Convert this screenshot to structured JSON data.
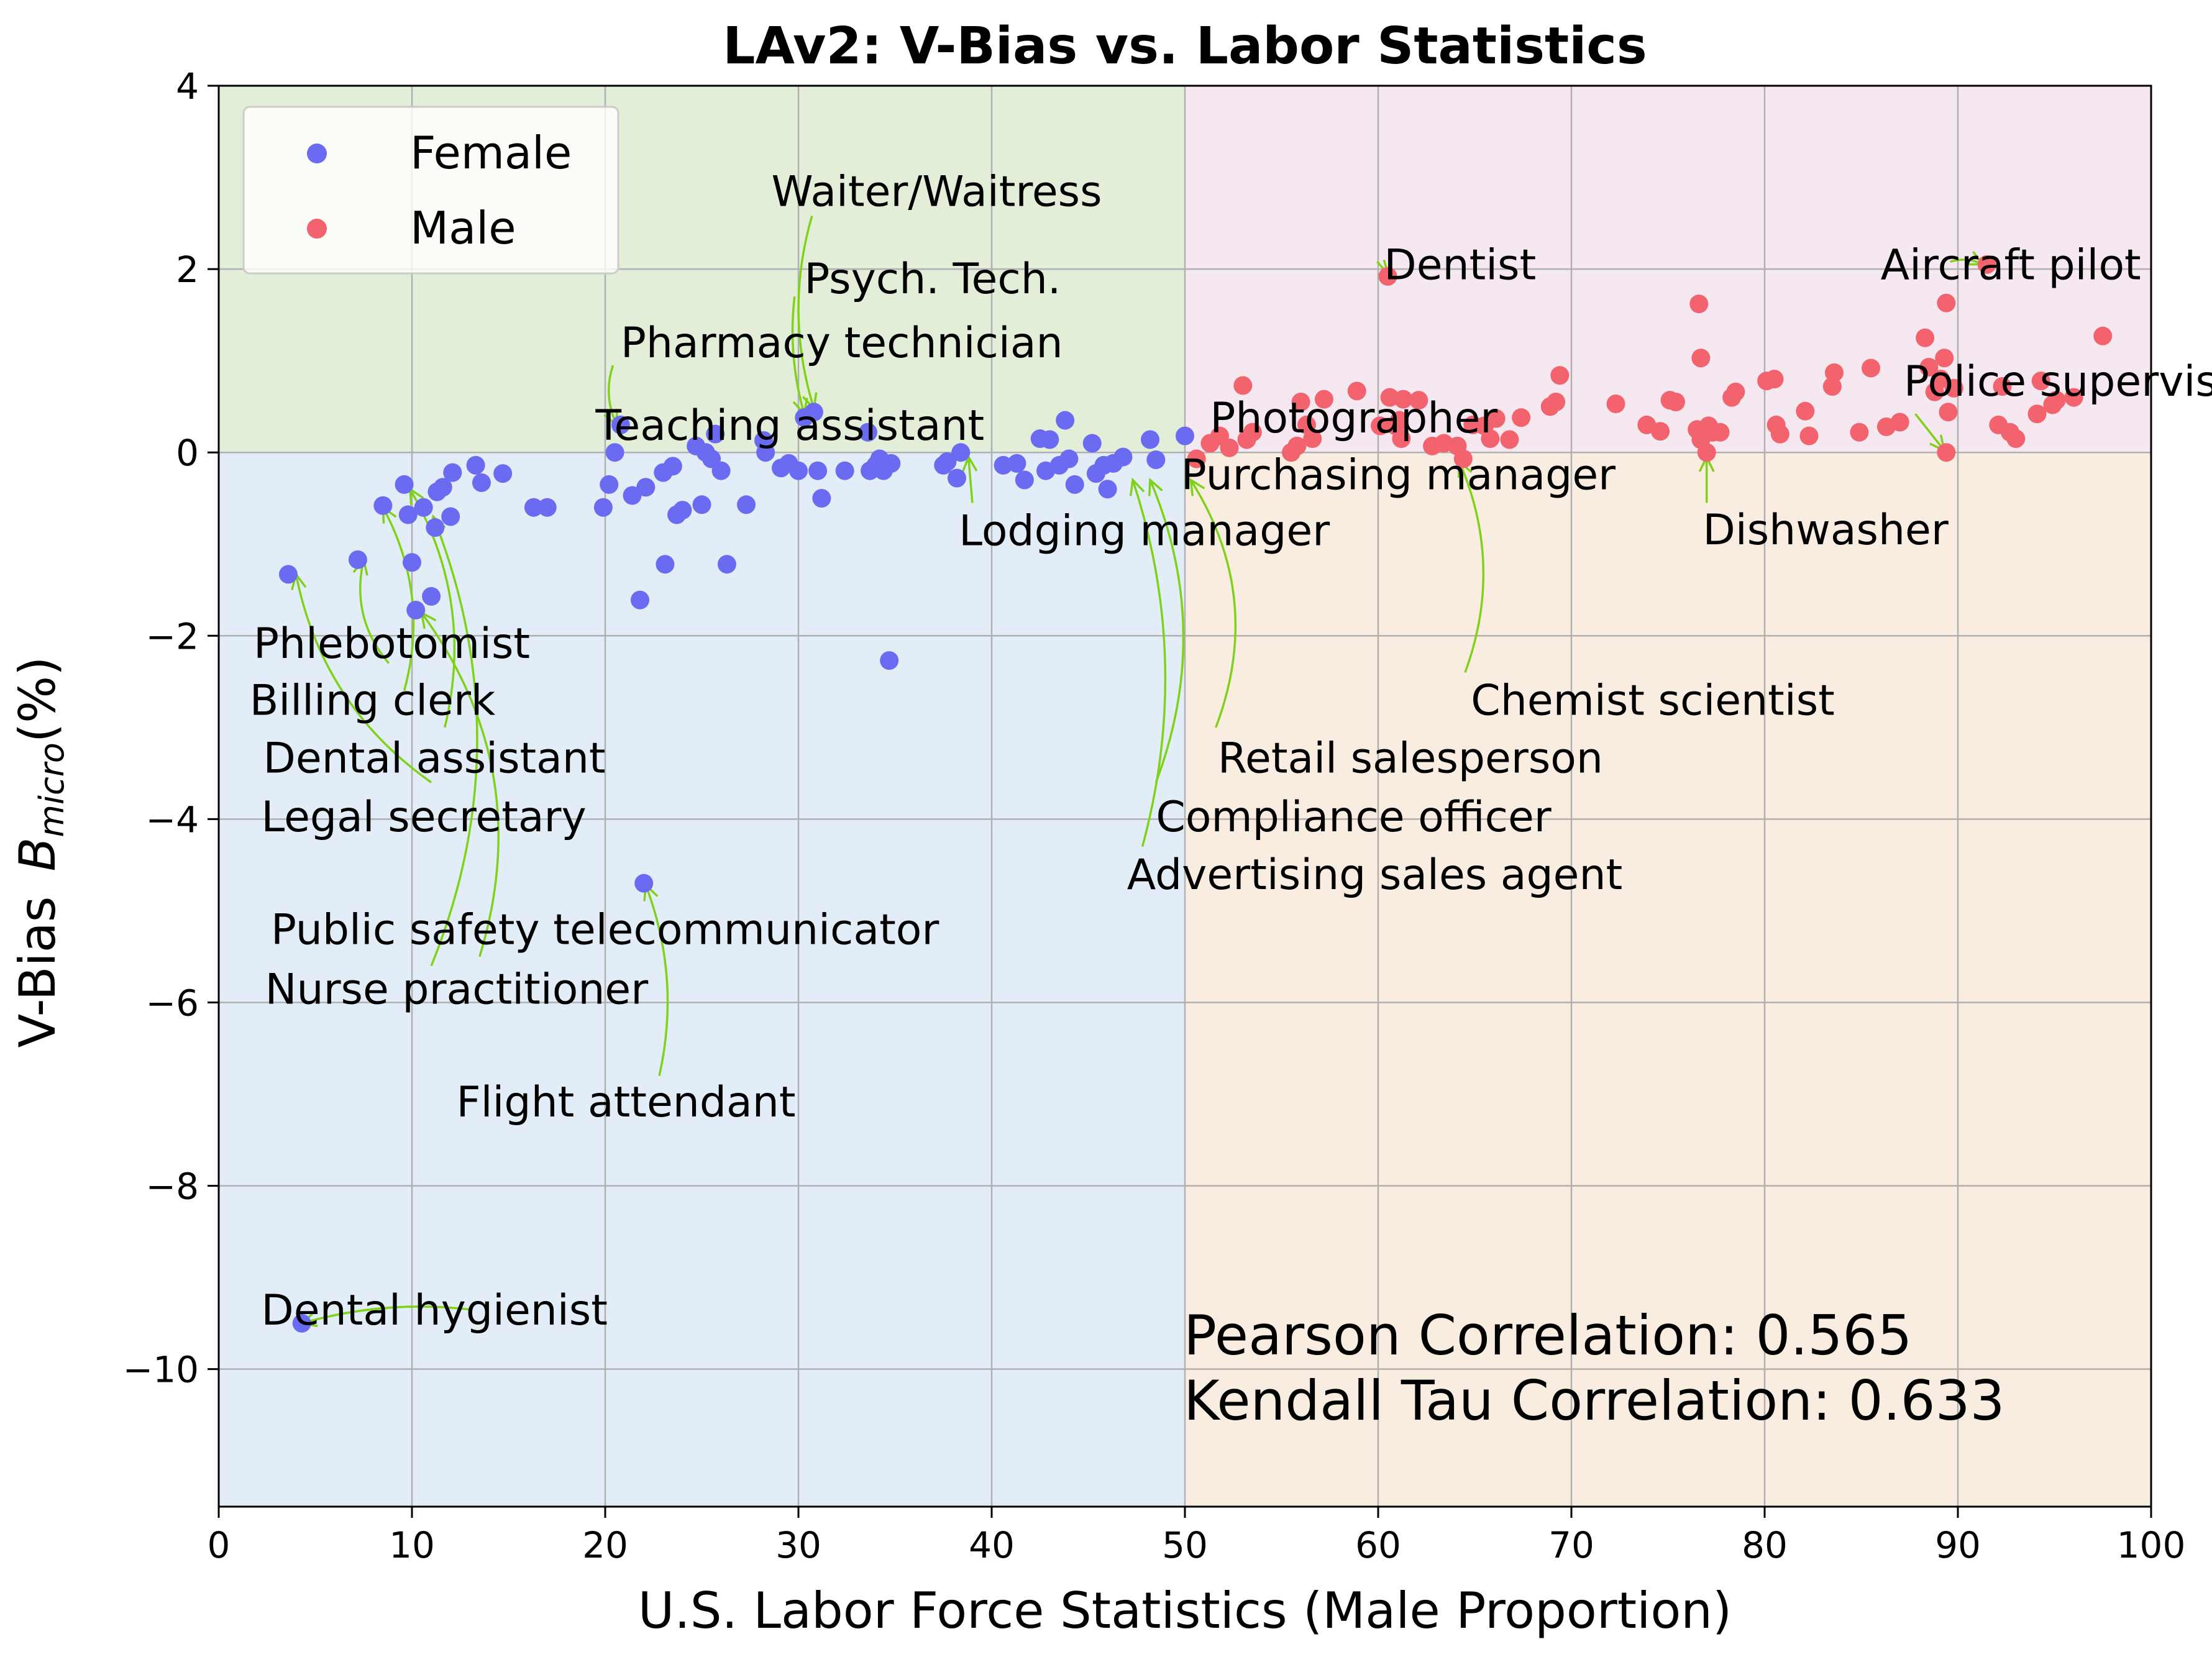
{
  "chart_data": {
    "type": "scatter",
    "title": "LAv2: V-Bias vs. Labor Statistics",
    "xlabel": "U.S. Labor Force Statistics (Male Proportion)",
    "ylabel_prefix": "V-Bias",
    "ylabel_symbol": "B",
    "ylabel_sub": "micro",
    "ylabel_suffix": "(%)",
    "xlim": [
      0,
      100
    ],
    "ylim": [
      -11.5,
      4
    ],
    "xticks": [
      0,
      10,
      20,
      30,
      40,
      50,
      60,
      70,
      80,
      90,
      100
    ],
    "yticks": [
      4,
      2,
      0,
      -2,
      -4,
      -6,
      -8,
      -10
    ],
    "xtick_labels": [
      "0",
      "10",
      "20",
      "30",
      "40",
      "50",
      "60",
      "70",
      "80",
      "90",
      "100"
    ],
    "ytick_labels": [
      "4",
      "2",
      "0",
      "−2",
      "−4",
      "−6",
      "−8",
      "−10"
    ],
    "grid": true,
    "legend_position": "top-left",
    "colors": {
      "female": "#6b6bf2",
      "male": "#f2636e",
      "region_top_left": "#e3eed9",
      "region_top_right": "#f5e8f0",
      "region_bottom_left": "#e3edf7",
      "region_bottom_right": "#f9ede1",
      "arrow": "#7fd11a"
    },
    "series": [
      {
        "name": "Female",
        "points": [
          [
            3.6,
            -1.33
          ],
          [
            4.3,
            -9.5
          ],
          [
            7.2,
            -1.17
          ],
          [
            8.5,
            -0.58
          ],
          [
            9.6,
            -0.35
          ],
          [
            9.8,
            -0.68
          ],
          [
            10,
            -1.2
          ],
          [
            10.2,
            -1.72
          ],
          [
            10.6,
            -0.6
          ],
          [
            11,
            -1.57
          ],
          [
            11.2,
            -0.82
          ],
          [
            11.3,
            -0.43
          ],
          [
            11.6,
            -0.38
          ],
          [
            12,
            -0.7
          ],
          [
            12.1,
            -0.22
          ],
          [
            13.3,
            -0.14
          ],
          [
            13.6,
            -0.33
          ],
          [
            14.7,
            -0.23
          ],
          [
            16.3,
            -0.6
          ],
          [
            17,
            -0.6
          ],
          [
            19.9,
            -0.6
          ],
          [
            20.2,
            -0.35
          ],
          [
            20.5,
            0
          ],
          [
            20.8,
            0.3
          ],
          [
            21.4,
            -0.47
          ],
          [
            21.8,
            -1.61
          ],
          [
            22,
            -4.7
          ],
          [
            22.1,
            -0.38
          ],
          [
            23,
            -0.22
          ],
          [
            23.1,
            -1.22
          ],
          [
            23.5,
            -0.15
          ],
          [
            23.7,
            -0.68
          ],
          [
            24,
            -0.63
          ],
          [
            24.7,
            0.07
          ],
          [
            25,
            -0.57
          ],
          [
            25.2,
            0
          ],
          [
            25.5,
            -0.07
          ],
          [
            25.7,
            0.2
          ],
          [
            26,
            -0.2
          ],
          [
            26.3,
            -1.22
          ],
          [
            27.3,
            -0.57
          ],
          [
            28.2,
            0.13
          ],
          [
            28.3,
            0
          ],
          [
            29.1,
            -0.17
          ],
          [
            29.5,
            -0.12
          ],
          [
            30,
            -0.2
          ],
          [
            30.3,
            0.38
          ],
          [
            30.8,
            0.44
          ],
          [
            31,
            -0.2
          ],
          [
            31.2,
            -0.5
          ],
          [
            32.4,
            -0.2
          ],
          [
            33.6,
            0.22
          ],
          [
            33.7,
            -0.2
          ],
          [
            34,
            -0.14
          ],
          [
            34.2,
            -0.07
          ],
          [
            34.4,
            -0.2
          ],
          [
            34.7,
            -2.27
          ],
          [
            34.8,
            -0.12
          ],
          [
            37.5,
            -0.14
          ],
          [
            37.7,
            -0.1
          ],
          [
            38.2,
            -0.28
          ],
          [
            38.4,
            0
          ],
          [
            40.6,
            -0.14
          ],
          [
            41.3,
            -0.12
          ],
          [
            41.7,
            -0.3
          ],
          [
            42.5,
            0.15
          ],
          [
            42.8,
            -0.2
          ],
          [
            43,
            0.14
          ],
          [
            43.5,
            -0.14
          ],
          [
            43.8,
            0.35
          ],
          [
            44,
            -0.07
          ],
          [
            44.3,
            -0.35
          ],
          [
            45.2,
            0.1
          ],
          [
            45.4,
            -0.23
          ],
          [
            45.8,
            -0.14
          ],
          [
            46,
            -0.4
          ],
          [
            46.3,
            -0.12
          ],
          [
            46.8,
            -0.05
          ],
          [
            48.2,
            0.14
          ],
          [
            48.5,
            -0.08
          ],
          [
            50,
            0.18
          ]
        ]
      },
      {
        "name": "Male",
        "points": [
          [
            50.6,
            -0.07
          ],
          [
            51.3,
            0.1
          ],
          [
            51.8,
            0.18
          ],
          [
            52.3,
            0.05
          ],
          [
            53,
            0.73
          ],
          [
            53.2,
            0.14
          ],
          [
            53.5,
            0.22
          ],
          [
            55.5,
            0
          ],
          [
            55.8,
            0.07
          ],
          [
            56,
            0.55
          ],
          [
            56.3,
            0.3
          ],
          [
            56.6,
            0.15
          ],
          [
            57.2,
            0.58
          ],
          [
            58.9,
            0.67
          ],
          [
            60.1,
            0.29
          ],
          [
            60.5,
            1.92
          ],
          [
            60.6,
            0.6
          ],
          [
            60.9,
            0.29
          ],
          [
            61.1,
            0.35
          ],
          [
            61.2,
            0.15
          ],
          [
            61.3,
            0.58
          ],
          [
            62.1,
            0.57
          ],
          [
            62.8,
            0.07
          ],
          [
            63.4,
            0.1
          ],
          [
            64.1,
            0.07
          ],
          [
            64.4,
            -0.07
          ],
          [
            64.9,
            0.3
          ],
          [
            65.5,
            0.29
          ],
          [
            65.8,
            0.15
          ],
          [
            66.1,
            0.37
          ],
          [
            66.8,
            0.14
          ],
          [
            67.4,
            0.38
          ],
          [
            68.9,
            0.5
          ],
          [
            69.2,
            0.55
          ],
          [
            69.4,
            0.84
          ],
          [
            72.3,
            0.53
          ],
          [
            73.9,
            0.3
          ],
          [
            74.6,
            0.23
          ],
          [
            75.1,
            0.57
          ],
          [
            75.4,
            0.55
          ],
          [
            76.5,
            0.25
          ],
          [
            76.6,
            1.62
          ],
          [
            76.7,
            0.14
          ],
          [
            76.7,
            1.03
          ],
          [
            77,
            0
          ],
          [
            77.1,
            0.29
          ],
          [
            77.3,
            0.22
          ],
          [
            77.7,
            0.22
          ],
          [
            78.3,
            0.6
          ],
          [
            78.5,
            0.66
          ],
          [
            80.1,
            0.78
          ],
          [
            80.5,
            0.8
          ],
          [
            80.6,
            0.3
          ],
          [
            80.8,
            0.2
          ],
          [
            82.1,
            0.45
          ],
          [
            82.3,
            0.18
          ],
          [
            83.5,
            0.72
          ],
          [
            83.6,
            0.87
          ],
          [
            84.9,
            0.22
          ],
          [
            85.5,
            0.92
          ],
          [
            86.3,
            0.28
          ],
          [
            87,
            0.33
          ],
          [
            88.3,
            1.25
          ],
          [
            88.5,
            0.93
          ],
          [
            88.8,
            0.66
          ],
          [
            89.1,
            0.8
          ],
          [
            89.3,
            1.03
          ],
          [
            89.4,
            1.63
          ],
          [
            89.4,
            0
          ],
          [
            89.5,
            0.44
          ],
          [
            89.8,
            0.7
          ],
          [
            91.5,
            2.05
          ],
          [
            92.1,
            0.3
          ],
          [
            92.3,
            0.72
          ],
          [
            92.7,
            0.22
          ],
          [
            93,
            0.15
          ],
          [
            94.1,
            0.42
          ],
          [
            94.3,
            0.78
          ],
          [
            94.9,
            0.52
          ],
          [
            95.1,
            0.57
          ],
          [
            96,
            0.6
          ],
          [
            97.5,
            1.27
          ]
        ]
      }
    ],
    "annotations": [
      {
        "text": "Waiter/Waitress",
        "tx": 28.6,
        "ty": 2.85,
        "tail": [
          30.7,
          2.58
        ],
        "head": [
          30.8,
          0.48
        ],
        "rad": 0.15
      },
      {
        "text": "Psych. Tech.",
        "tx": 30.3,
        "ty": 1.9,
        "tail": [
          29.8,
          1.7
        ],
        "head": [
          30.3,
          0.42
        ],
        "rad": 0.1
      },
      {
        "text": "Pharmacy technician",
        "tx": 20.8,
        "ty": 1.2,
        "tail": [
          20.4,
          0.95
        ],
        "head": [
          20.6,
          0.3
        ],
        "rad": 0.2
      },
      {
        "text": "Teaching assistant",
        "tx": 19.5,
        "ty": 0.3,
        "tail": null,
        "head": null,
        "rad": 0
      },
      {
        "text": "Photographer",
        "tx": 51.3,
        "ty": 0.38,
        "tail": null,
        "head": null,
        "rad": 0
      },
      {
        "text": "Purchasing manager",
        "tx": 49.8,
        "ty": -0.24,
        "tail": null,
        "head": null,
        "rad": 0
      },
      {
        "text": "Lodging manager",
        "tx": 38.3,
        "ty": -0.85,
        "tail": [
          39,
          -0.55
        ],
        "head": [
          38.8,
          -0.05
        ],
        "rad": 0
      },
      {
        "text": "Dentist",
        "tx": 60.3,
        "ty": 2.05,
        "tail": [
          60.3,
          2.1
        ],
        "head": [
          60.5,
          1.95
        ],
        "rad": 0
      },
      {
        "text": "Aircraft pilot",
        "tx": 86,
        "ty": 2.05,
        "tail": [
          89.6,
          2.08
        ],
        "head": [
          91.3,
          2.05
        ],
        "rad": -0.2
      },
      {
        "text": "Police supervisor",
        "tx": 87.2,
        "ty": 0.78,
        "tail": [
          87.8,
          0.42
        ],
        "head": [
          89.3,
          0.02
        ],
        "rad": 0
      },
      {
        "text": "Dishwasher",
        "tx": 76.8,
        "ty": -0.84,
        "tail": [
          77,
          -0.55
        ],
        "head": [
          77,
          -0.05
        ],
        "rad": 0
      },
      {
        "text": "Chemist scientist",
        "tx": 64.8,
        "ty": -2.7,
        "tail": [
          64.5,
          -2.4
        ],
        "head": [
          64.2,
          -0.1
        ],
        "rad": 0.2
      },
      {
        "text": "Retail salesperson",
        "tx": 51.7,
        "ty": -3.33,
        "tail": [
          51.6,
          -3
        ],
        "head": [
          50.3,
          -0.3
        ],
        "rad": 0.25
      },
      {
        "text": "Compliance officer",
        "tx": 48.5,
        "ty": -3.97,
        "tail": [
          48.5,
          -3.6
        ],
        "head": [
          48.2,
          -0.3
        ],
        "rad": 0.2
      },
      {
        "text": "Advertising sales agent",
        "tx": 47,
        "ty": -4.6,
        "tail": [
          47.8,
          -4.3
        ],
        "head": [
          47.3,
          -0.3
        ],
        "rad": 0.15
      },
      {
        "text": "Phlebotomist",
        "tx": 1.8,
        "ty": -2.08,
        "tail": [
          8.8,
          -2.3
        ],
        "head": [
          7.5,
          -1.17
        ],
        "rad": -0.25
      },
      {
        "text": "Billing clerk",
        "tx": 1.6,
        "ty": -2.7,
        "tail": [
          9.6,
          -2.6
        ],
        "head": [
          8.5,
          -0.6
        ],
        "rad": 0.2
      },
      {
        "text": "Dental assistant",
        "tx": 2.3,
        "ty": -3.33,
        "tail": [
          11.7,
          -3
        ],
        "head": [
          9.9,
          -0.4
        ],
        "rad": 0.2
      },
      {
        "text": "Legal secretary",
        "tx": 2.2,
        "ty": -3.97,
        "tail": [
          11,
          -3.6
        ],
        "head": [
          4,
          -1.33
        ],
        "rad": -0.2
      },
      {
        "text": "Public safety telecommunicator",
        "tx": 2.7,
        "ty": -5.2,
        "tail": [
          13.5,
          -5.5
        ],
        "head": [
          10.5,
          -1.75
        ],
        "rad": 0.25
      },
      {
        "text": "Nurse practitioner",
        "tx": 2.4,
        "ty": -5.85,
        "tail": [
          11,
          -5.6
        ],
        "head": [
          11.1,
          -0.7
        ],
        "rad": 0.2
      },
      {
        "text": "Flight attendant",
        "tx": 12.3,
        "ty": -7.08,
        "tail": [
          22.8,
          -6.8
        ],
        "head": [
          22.1,
          -4.72
        ],
        "rad": 0.15
      },
      {
        "text": "Dental hygienist",
        "tx": 2.2,
        "ty": -9.35,
        "tail": [
          13,
          -9.35
        ],
        "head": [
          4.3,
          -9.5
        ],
        "rad": 0.1
      }
    ],
    "stats": {
      "pearson": "Pearson Correlation: 0.565",
      "kendall": "Kendall Tau Correlation: 0.633"
    }
  }
}
